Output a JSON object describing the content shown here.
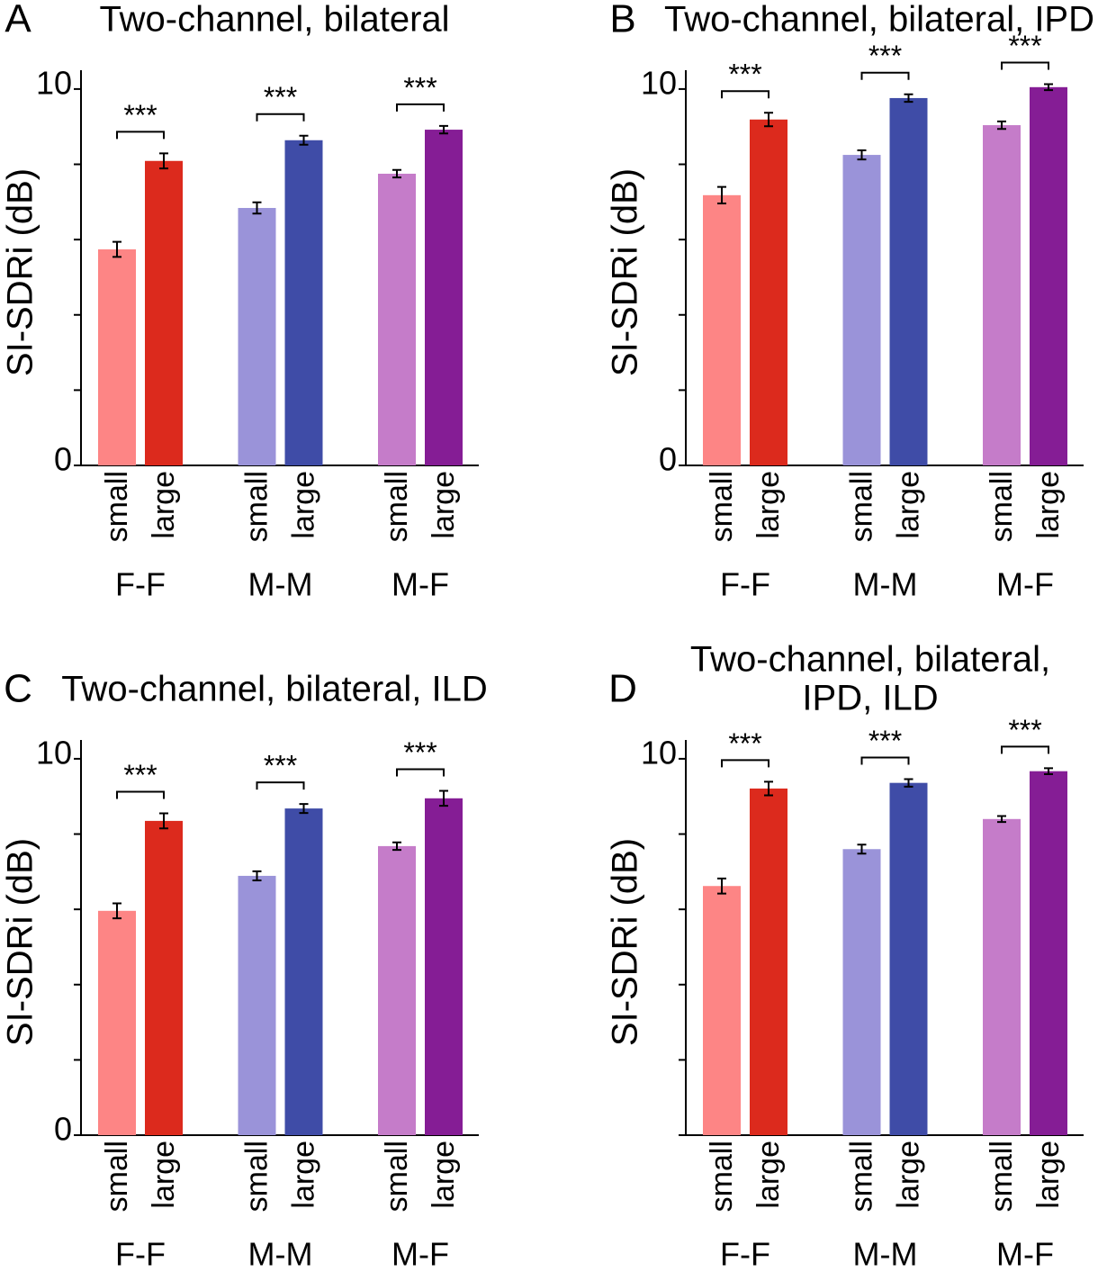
{
  "chart_data": [
    {
      "type": "bar",
      "panel": "A",
      "title": "Two-channel, bilateral",
      "ylabel": "SI-SDRi (dB)",
      "categories": [
        "F-F",
        "M-M",
        "M-F"
      ],
      "series": [
        {
          "name": "small",
          "colors": [
            "#fd8585",
            "#9a93d9",
            "#c57cc9"
          ],
          "values": [
            5.74,
            6.84,
            7.75
          ],
          "errors": [
            0.2,
            0.15,
            0.1
          ]
        },
        {
          "name": "large",
          "colors": [
            "#dc2a1d",
            "#3f4ca7",
            "#851d95"
          ],
          "values": [
            8.09,
            8.64,
            8.92
          ],
          "errors": [
            0.2,
            0.12,
            0.1
          ]
        }
      ],
      "significance": [
        "***",
        "***",
        "***"
      ],
      "ylim": [
        0,
        10.5
      ],
      "yticks": [
        0,
        10
      ],
      "minor_yticks": [
        2,
        4,
        6,
        8
      ]
    },
    {
      "type": "bar",
      "panel": "B",
      "title": "Two-channel, bilateral, IPD",
      "ylabel": "SI-SDRi (dB)",
      "categories": [
        "F-F",
        "M-M",
        "M-F"
      ],
      "series": [
        {
          "name": "small",
          "colors": [
            "#fd8585",
            "#9a93d9",
            "#c57cc9"
          ],
          "values": [
            7.18,
            8.25,
            9.04
          ],
          "errors": [
            0.22,
            0.12,
            0.1
          ]
        },
        {
          "name": "large",
          "colors": [
            "#dc2a1d",
            "#3f4ca7",
            "#851d95"
          ],
          "values": [
            9.19,
            9.76,
            10.05
          ],
          "errors": [
            0.18,
            0.1,
            0.08
          ]
        }
      ],
      "significance": [
        "***",
        "***",
        "***"
      ],
      "ylim": [
        0,
        10.5
      ],
      "yticks": [
        0,
        10
      ],
      "minor_yticks": [
        2,
        4,
        6,
        8
      ]
    },
    {
      "type": "bar",
      "panel": "C",
      "title": "Two-channel, bilateral, ILD",
      "ylabel": "SI-SDRi (dB)",
      "categories": [
        "F-F",
        "M-M",
        "M-F"
      ],
      "series": [
        {
          "name": "small",
          "colors": [
            "#fd8585",
            "#9a93d9",
            "#c57cc9"
          ],
          "values": [
            5.96,
            6.89,
            7.68
          ],
          "errors": [
            0.2,
            0.12,
            0.1
          ]
        },
        {
          "name": "large",
          "colors": [
            "#dc2a1d",
            "#3f4ca7",
            "#851d95"
          ],
          "values": [
            8.35,
            8.68,
            8.95
          ],
          "errors": [
            0.2,
            0.12,
            0.2
          ]
        }
      ],
      "significance": [
        "***",
        "***",
        "***"
      ],
      "ylim": [
        0,
        10.5
      ],
      "yticks": [
        0,
        10
      ],
      "minor_yticks": [
        2,
        4,
        6,
        8
      ]
    },
    {
      "type": "bar",
      "panel": "D",
      "title": [
        "Two-channel, bilateral,",
        "IPD, ILD"
      ],
      "ylabel": "SI-SDRi (dB)",
      "categories": [
        "F-F",
        "M-M",
        "M-F"
      ],
      "series": [
        {
          "name": "small",
          "colors": [
            "#fd8585",
            "#9a93d9",
            "#c57cc9"
          ],
          "values": [
            6.62,
            7.6,
            8.4
          ],
          "errors": [
            0.2,
            0.12,
            0.08
          ]
        },
        {
          "name": "large",
          "colors": [
            "#dc2a1d",
            "#3f4ca7",
            "#851d95"
          ],
          "values": [
            9.21,
            9.36,
            9.67
          ],
          "errors": [
            0.18,
            0.1,
            0.08
          ]
        }
      ],
      "significance": [
        "***",
        "***",
        "***"
      ],
      "ylim": [
        0,
        10.5
      ],
      "yticks": [
        10
      ],
      "minor_yticks": [
        0,
        2,
        4,
        6,
        8
      ]
    }
  ]
}
